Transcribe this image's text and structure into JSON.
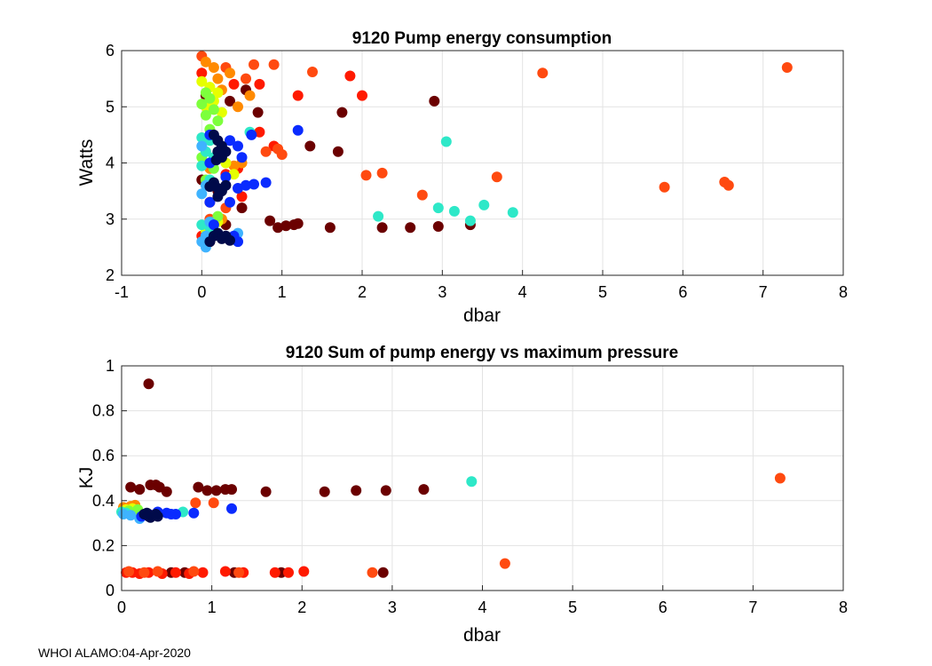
{
  "footer": "WHOI ALAMO:04-Apr-2020",
  "colors": {
    "deep_red": "#6b0000",
    "dark_red": "#8b0000",
    "red": "#ff1a00",
    "orange_red": "#ff4a10",
    "orange": "#ff8a00",
    "yellow": "#e6ff00",
    "green": "#7dff3c",
    "cyan": "#2ee8c8",
    "light_blue": "#3fb3ff",
    "blue": "#0a2bff",
    "navy": "#000a4a",
    "grid": "#e3e3e3",
    "axis": "#262626"
  },
  "chart_data": [
    {
      "type": "scatter",
      "title": "9120 Pump energy consumption",
      "xlabel": "dbar",
      "ylabel": "Watts",
      "xlim": [
        -1,
        8
      ],
      "ylim": [
        2,
        6
      ],
      "xticks": [
        -1,
        0,
        1,
        2,
        3,
        4,
        5,
        6,
        7,
        8
      ],
      "yticks": [
        2,
        3,
        4,
        5,
        6
      ],
      "grid": true,
      "series": [
        {
          "name": "deep-red",
          "color": "deep_red",
          "points": [
            [
              0.0,
              3.7
            ],
            [
              0.05,
              5.2
            ],
            [
              0.1,
              2.6
            ],
            [
              0.2,
              3.5
            ],
            [
              0.3,
              2.9
            ],
            [
              0.35,
              5.1
            ],
            [
              0.55,
              5.3
            ],
            [
              0.7,
              4.9
            ],
            [
              1.35,
              4.3
            ],
            [
              1.75,
              4.9
            ],
            [
              1.7,
              4.2
            ],
            [
              2.9,
              5.1
            ],
            [
              0.95,
              2.85
            ],
            [
              1.05,
              2.88
            ],
            [
              1.15,
              2.9
            ],
            [
              1.6,
              2.85
            ],
            [
              1.2,
              2.92
            ],
            [
              2.25,
              2.85
            ],
            [
              2.6,
              2.85
            ],
            [
              2.95,
              2.87
            ],
            [
              3.35,
              2.9
            ],
            [
              0.85,
              2.97
            ],
            [
              0.5,
              3.2
            ]
          ]
        },
        {
          "name": "red",
          "color": "red",
          "points": [
            [
              0.0,
              5.6
            ],
            [
              0.1,
              3.3
            ],
            [
              0.4,
              5.4
            ],
            [
              0.45,
              3.9
            ],
            [
              0.5,
              3.4
            ],
            [
              0.72,
              4.55
            ],
            [
              0.72,
              5.4
            ],
            [
              0.9,
              4.3
            ],
            [
              1.2,
              5.2
            ],
            [
              1.85,
              5.55
            ],
            [
              2.0,
              5.2
            ],
            [
              0.0,
              2.7
            ],
            [
              0.3,
              3.8
            ]
          ]
        },
        {
          "name": "orange-red",
          "color": "orange_red",
          "points": [
            [
              0.0,
              5.9
            ],
            [
              0.3,
              5.7
            ],
            [
              0.55,
              5.5
            ],
            [
              0.65,
              5.75
            ],
            [
              0.9,
              5.75
            ],
            [
              0.95,
              4.25
            ],
            [
              1.0,
              4.15
            ],
            [
              1.38,
              5.62
            ],
            [
              2.05,
              3.78
            ],
            [
              2.25,
              3.82
            ],
            [
              2.75,
              3.43
            ],
            [
              3.68,
              3.75
            ],
            [
              4.25,
              5.6
            ],
            [
              5.77,
              3.57
            ],
            [
              6.52,
              3.66
            ],
            [
              6.57,
              3.6
            ],
            [
              7.3,
              5.7
            ],
            [
              0.8,
              4.2
            ],
            [
              0.3,
              3.2
            ],
            [
              0.1,
              3.0
            ]
          ]
        },
        {
          "name": "orange",
          "color": "orange",
          "points": [
            [
              0.05,
              5.8
            ],
            [
              0.15,
              5.7
            ],
            [
              0.2,
              5.5
            ],
            [
              0.25,
              5.3
            ],
            [
              0.35,
              5.6
            ],
            [
              0.45,
              5.0
            ],
            [
              0.5,
              4.0
            ],
            [
              0.1,
              3.9
            ],
            [
              0.25,
              3.0
            ],
            [
              0.1,
              2.75
            ],
            [
              0.4,
              3.95
            ],
            [
              0.6,
              5.2
            ]
          ]
        },
        {
          "name": "yellow",
          "color": "yellow",
          "points": [
            [
              0.0,
              5.45
            ],
            [
              0.1,
              5.35
            ],
            [
              0.2,
              5.25
            ],
            [
              0.15,
              5.1
            ],
            [
              0.05,
              5.0
            ],
            [
              0.25,
              4.9
            ],
            [
              0.3,
              4.0
            ],
            [
              0.4,
              3.8
            ],
            [
              0.2,
              2.95
            ],
            [
              0.05,
              2.8
            ]
          ]
        },
        {
          "name": "green",
          "color": "green",
          "points": [
            [
              0.05,
              5.25
            ],
            [
              0.1,
              5.15
            ],
            [
              0.0,
              5.05
            ],
            [
              0.15,
              4.95
            ],
            [
              0.05,
              4.85
            ],
            [
              0.2,
              4.75
            ],
            [
              0.1,
              4.6
            ],
            [
              0.0,
              4.1
            ],
            [
              0.15,
              3.9
            ],
            [
              0.05,
              3.7
            ],
            [
              0.2,
              3.05
            ]
          ]
        },
        {
          "name": "cyan",
          "color": "cyan",
          "points": [
            [
              0.0,
              4.45
            ],
            [
              0.1,
              4.4
            ],
            [
              0.05,
              4.2
            ],
            [
              0.15,
              4.1
            ],
            [
              0.0,
              3.95
            ],
            [
              0.1,
              3.7
            ],
            [
              0.6,
              4.55
            ],
            [
              3.05,
              4.38
            ],
            [
              2.2,
              3.05
            ],
            [
              2.95,
              3.2
            ],
            [
              3.15,
              3.14
            ],
            [
              3.35,
              2.97
            ],
            [
              3.52,
              3.25
            ],
            [
              3.88,
              3.12
            ],
            [
              0.0,
              2.9
            ],
            [
              0.1,
              2.85
            ]
          ]
        },
        {
          "name": "light-blue",
          "color": "light_blue",
          "points": [
            [
              0.0,
              4.3
            ],
            [
              0.05,
              3.6
            ],
            [
              0.0,
              3.45
            ],
            [
              0.05,
              2.7
            ],
            [
              0.0,
              2.6
            ],
            [
              0.05,
              2.5
            ],
            [
              0.1,
              2.95
            ],
            [
              0.45,
              2.75
            ]
          ]
        },
        {
          "name": "blue",
          "color": "blue",
          "points": [
            [
              0.1,
              4.5
            ],
            [
              0.35,
              4.4
            ],
            [
              0.45,
              4.3
            ],
            [
              0.5,
              4.1
            ],
            [
              0.1,
              4.0
            ],
            [
              0.45,
              3.55
            ],
            [
              0.55,
              3.6
            ],
            [
              0.65,
              3.62
            ],
            [
              0.8,
              3.65
            ],
            [
              1.2,
              4.58
            ],
            [
              0.62,
              4.5
            ],
            [
              0.1,
              3.3
            ],
            [
              0.35,
              3.3
            ],
            [
              0.4,
              2.7
            ],
            [
              0.45,
              2.6
            ],
            [
              0.15,
              2.9
            ],
            [
              0.3,
              3.75
            ]
          ]
        },
        {
          "name": "navy",
          "color": "navy",
          "points": [
            [
              0.15,
              4.5
            ],
            [
              0.2,
              4.4
            ],
            [
              0.25,
              4.3
            ],
            [
              0.2,
              4.2
            ],
            [
              0.25,
              4.1
            ],
            [
              0.3,
              4.2
            ],
            [
              0.18,
              4.05
            ],
            [
              0.15,
              3.65
            ],
            [
              0.2,
              3.55
            ],
            [
              0.25,
              3.5
            ],
            [
              0.3,
              3.6
            ],
            [
              0.2,
              3.4
            ],
            [
              0.1,
              3.58
            ],
            [
              0.15,
              2.7
            ],
            [
              0.2,
              2.75
            ],
            [
              0.25,
              2.65
            ],
            [
              0.3,
              2.7
            ],
            [
              0.1,
              2.6
            ],
            [
              0.35,
              2.62
            ]
          ]
        }
      ]
    },
    {
      "type": "scatter",
      "title": "9120 Sum of pump energy vs maximum pressure",
      "xlabel": "dbar",
      "ylabel": "KJ",
      "xlim": [
        0,
        8
      ],
      "ylim": [
        0,
        1
      ],
      "xticks": [
        0,
        1,
        2,
        3,
        4,
        5,
        6,
        7,
        8
      ],
      "yticks": [
        0,
        0.2,
        0.4,
        0.6,
        0.8,
        1
      ],
      "grid": true,
      "series": [
        {
          "name": "deep-red",
          "color": "deep_red",
          "points": [
            [
              0.3,
              0.92
            ],
            [
              0.1,
              0.46
            ],
            [
              0.2,
              0.45
            ],
            [
              0.32,
              0.47
            ],
            [
              0.38,
              0.47
            ],
            [
              0.42,
              0.46
            ],
            [
              0.5,
              0.44
            ],
            [
              0.85,
              0.46
            ],
            [
              0.95,
              0.445
            ],
            [
              1.05,
              0.445
            ],
            [
              1.15,
              0.45
            ],
            [
              1.22,
              0.45
            ],
            [
              1.6,
              0.44
            ],
            [
              2.25,
              0.44
            ],
            [
              2.6,
              0.445
            ],
            [
              2.93,
              0.445
            ],
            [
              3.35,
              0.45
            ],
            [
              1.77,
              0.08
            ],
            [
              2.9,
              0.08
            ],
            [
              0.55,
              0.08
            ],
            [
              0.7,
              0.08
            ],
            [
              1.25,
              0.08
            ]
          ]
        },
        {
          "name": "red",
          "color": "red",
          "points": [
            [
              0.05,
              0.08
            ],
            [
              0.12,
              0.08
            ],
            [
              0.2,
              0.075
            ],
            [
              0.3,
              0.08
            ],
            [
              0.45,
              0.075
            ],
            [
              0.6,
              0.08
            ],
            [
              0.75,
              0.075
            ],
            [
              0.9,
              0.08
            ],
            [
              1.15,
              0.085
            ],
            [
              1.35,
              0.08
            ],
            [
              1.7,
              0.08
            ],
            [
              1.85,
              0.08
            ],
            [
              2.02,
              0.085
            ]
          ]
        },
        {
          "name": "orange-red",
          "color": "orange_red",
          "points": [
            [
              0.08,
              0.085
            ],
            [
              0.25,
              0.08
            ],
            [
              0.4,
              0.085
            ],
            [
              0.8,
              0.085
            ],
            [
              1.3,
              0.08
            ],
            [
              2.78,
              0.08
            ],
            [
              4.25,
              0.12
            ],
            [
              7.3,
              0.5
            ],
            [
              0.82,
              0.39
            ],
            [
              1.02,
              0.39
            ]
          ]
        },
        {
          "name": "orange",
          "color": "orange",
          "points": [
            [
              0.02,
              0.37
            ],
            [
              0.1,
              0.375
            ],
            [
              0.15,
              0.38
            ]
          ]
        },
        {
          "name": "yellow",
          "color": "yellow",
          "points": [
            [
              0.05,
              0.36
            ],
            [
              0.12,
              0.365
            ]
          ]
        },
        {
          "name": "green",
          "color": "green",
          "points": [
            [
              0.08,
              0.355
            ],
            [
              0.18,
              0.36
            ]
          ]
        },
        {
          "name": "cyan",
          "color": "cyan",
          "points": [
            [
              0.0,
              0.35
            ],
            [
              0.05,
              0.345
            ],
            [
              0.68,
              0.35
            ],
            [
              3.88,
              0.485
            ]
          ]
        },
        {
          "name": "light-blue",
          "color": "light_blue",
          "points": [
            [
              0.02,
              0.34
            ],
            [
              0.1,
              0.335
            ],
            [
              0.2,
              0.32
            ]
          ]
        },
        {
          "name": "blue",
          "color": "blue",
          "points": [
            [
              0.22,
              0.33
            ],
            [
              0.3,
              0.34
            ],
            [
              0.4,
              0.35
            ],
            [
              0.5,
              0.345
            ],
            [
              0.55,
              0.34
            ],
            [
              0.8,
              0.345
            ],
            [
              1.22,
              0.365
            ],
            [
              0.6,
              0.34
            ]
          ]
        },
        {
          "name": "navy",
          "color": "navy",
          "points": [
            [
              0.25,
              0.34
            ],
            [
              0.3,
              0.33
            ],
            [
              0.35,
              0.335
            ],
            [
              0.4,
              0.33
            ],
            [
              0.32,
              0.325
            ],
            [
              0.28,
              0.345
            ],
            [
              0.38,
              0.34
            ]
          ]
        }
      ]
    }
  ]
}
